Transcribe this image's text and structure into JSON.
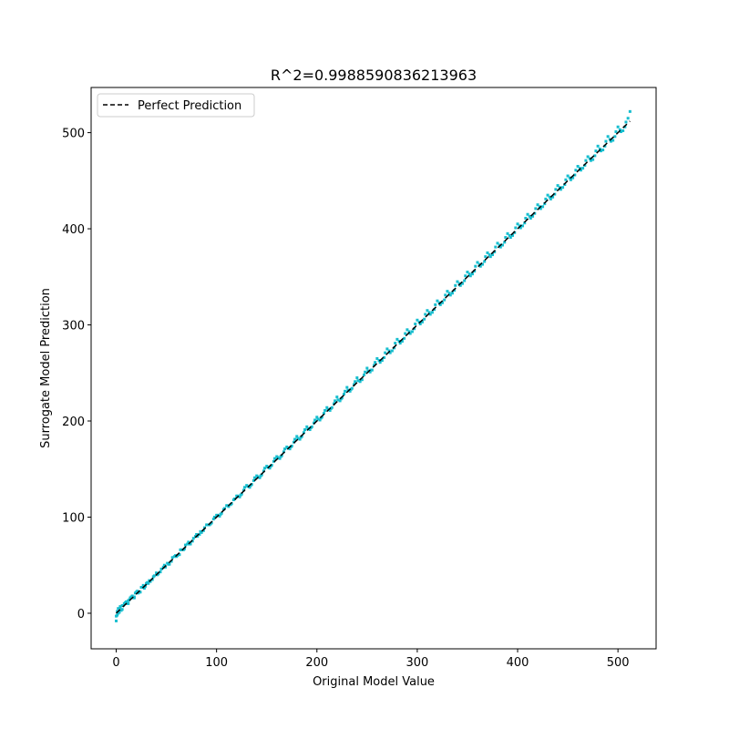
{
  "chart_data": {
    "type": "scatter",
    "title": "R^2=0.9988590836213963",
    "xlabel": "Original Model Value",
    "ylabel": "Surrogate Model Prediction",
    "xlim": [
      -25,
      538
    ],
    "ylim": [
      -37,
      547
    ],
    "x_ticks": [
      0,
      100,
      200,
      300,
      400,
      500
    ],
    "y_ticks": [
      0,
      100,
      200,
      300,
      400,
      500
    ],
    "x_tick_labels": [
      "0",
      "100",
      "200",
      "300",
      "400",
      "500"
    ],
    "y_tick_labels": [
      "0",
      "100",
      "200",
      "300",
      "400",
      "500"
    ],
    "grid": false,
    "legend": {
      "placement": "upper-left",
      "entries": [
        "Perfect Prediction"
      ]
    },
    "series": [
      {
        "kind": "line",
        "legend_label": "Perfect Prediction",
        "style": "dashed",
        "color": "#000000",
        "x": [
          0,
          512
        ],
        "y": [
          0,
          512
        ]
      },
      {
        "kind": "scatter",
        "color": "#17becf",
        "marker": "square",
        "x": [
          0,
          1,
          2,
          3,
          4,
          5,
          6,
          8,
          10,
          12,
          14,
          16,
          18,
          20,
          22,
          25,
          28,
          30,
          33,
          36,
          40,
          44,
          48,
          52,
          56,
          60,
          64,
          68,
          72,
          76,
          80,
          85,
          90,
          95,
          100,
          105,
          110,
          115,
          120,
          125,
          130,
          135,
          140,
          145,
          150,
          155,
          160,
          165,
          170,
          175,
          180,
          185,
          190,
          195,
          200,
          205,
          210,
          215,
          220,
          225,
          230,
          235,
          240,
          245,
          250,
          255,
          260,
          265,
          270,
          275,
          280,
          285,
          290,
          295,
          300,
          305,
          310,
          315,
          320,
          325,
          330,
          335,
          340,
          345,
          350,
          355,
          360,
          365,
          370,
          375,
          380,
          385,
          390,
          395,
          400,
          405,
          410,
          415,
          420,
          425,
          430,
          435,
          440,
          445,
          450,
          455,
          460,
          465,
          470,
          475,
          480,
          485,
          490,
          495,
          500,
          505,
          510,
          512,
          0,
          2,
          4,
          6,
          9,
          12,
          15,
          18,
          21,
          24,
          27,
          32,
          37,
          42,
          47,
          53,
          58,
          63,
          69,
          74,
          79,
          83,
          88,
          93,
          98,
          103,
          108,
          112,
          118,
          123,
          128,
          133,
          138,
          143,
          148,
          153,
          158,
          163,
          168,
          173,
          178,
          183,
          188,
          193,
          198,
          203,
          208,
          213,
          218,
          223,
          228,
          233,
          238,
          243,
          248,
          253,
          258,
          263,
          268,
          273,
          278,
          283,
          288,
          293,
          298,
          303,
          308,
          313,
          318,
          323,
          328,
          333,
          338,
          343,
          348,
          353,
          358,
          363,
          368,
          373,
          378,
          383,
          388,
          393,
          398,
          403,
          408,
          413,
          418,
          423,
          428,
          433,
          438,
          443,
          448,
          453,
          458,
          463,
          468,
          473,
          478,
          483,
          488,
          493,
          498,
          503,
          508,
          1,
          3,
          7,
          11,
          13,
          17,
          19,
          23,
          26,
          29,
          31,
          34,
          38,
          41,
          45,
          49,
          51,
          55,
          59,
          61,
          65,
          67,
          71,
          73,
          77,
          81,
          84,
          87,
          91,
          94,
          97,
          101,
          104,
          107,
          111,
          114,
          117,
          121,
          124,
          127,
          131,
          134,
          137,
          141,
          144,
          147,
          151,
          154,
          157,
          161,
          164,
          167,
          171,
          174,
          177,
          181,
          184,
          187,
          191,
          194,
          197,
          201,
          204,
          207,
          211,
          214,
          217,
          221,
          224,
          227,
          231,
          234,
          237,
          241,
          244,
          247,
          251,
          254,
          257,
          262,
          267,
          272,
          277,
          282,
          287,
          292,
          297,
          302,
          307,
          312,
          317,
          322,
          327,
          332,
          337,
          342,
          347,
          352,
          357,
          362,
          367,
          372,
          377,
          382,
          387,
          392,
          397,
          402,
          407,
          412,
          417,
          422,
          427,
          432,
          437,
          442,
          447,
          452,
          457,
          462,
          467,
          472,
          477,
          482,
          487,
          492,
          497,
          502,
          507
        ],
        "y": [
          -8,
          2,
          5,
          1,
          6,
          3,
          8,
          10,
          12,
          13,
          16,
          18,
          17,
          22,
          21,
          27,
          26,
          31,
          34,
          35,
          42,
          43,
          50,
          51,
          58,
          59,
          66,
          67,
          74,
          75,
          82,
          84,
          92,
          94,
          102,
          104,
          112,
          114,
          122,
          124,
          133,
          134,
          143,
          144,
          153,
          154,
          163,
          164,
          173,
          174,
          184,
          184,
          194,
          194,
          204,
          204,
          214,
          214,
          225,
          224,
          235,
          234,
          245,
          243,
          255,
          253,
          265,
          263,
          275,
          273,
          285,
          283,
          295,
          293,
          305,
          303,
          315,
          313,
          325,
          323,
          335,
          333,
          345,
          343,
          355,
          353,
          365,
          363,
          375,
          373,
          385,
          383,
          395,
          393,
          405,
          403,
          415,
          413,
          425,
          423,
          435,
          433,
          445,
          443,
          455,
          453,
          465,
          463,
          475,
          472,
          486,
          482,
          496,
          492,
          506,
          502,
          515,
          522,
          -3,
          0,
          7,
          4,
          11,
          10,
          17,
          16,
          23,
          22,
          29,
          31,
          38,
          41,
          48,
          51,
          59,
          61,
          71,
          72,
          80,
          82,
          89,
          92,
          100,
          101,
          109,
          111,
          119,
          121,
          131,
          131,
          141,
          141,
          151,
          151,
          161,
          161,
          171,
          171,
          181,
          181,
          191,
          191,
          201,
          201,
          211,
          211,
          221,
          221,
          231,
          231,
          241,
          241,
          251,
          251,
          261,
          261,
          271,
          271,
          281,
          281,
          291,
          291,
          301,
          301,
          311,
          311,
          321,
          321,
          331,
          331,
          341,
          341,
          351,
          351,
          361,
          361,
          371,
          371,
          381,
          381,
          391,
          391,
          401,
          401,
          411,
          411,
          421,
          421,
          431,
          431,
          441,
          441,
          451,
          451,
          461,
          461,
          471,
          471,
          481,
          481,
          491,
          491,
          501,
          501,
          511,
          -2,
          1,
          8,
          10,
          14,
          16,
          21,
          22,
          27,
          28,
          32,
          33,
          39,
          40,
          46,
          48,
          52,
          54,
          60,
          60,
          66,
          66,
          72,
          72,
          78,
          80,
          85,
          86,
          92,
          93,
          98,
          102,
          103,
          108,
          112,
          113,
          118,
          122,
          123,
          128,
          132,
          133,
          138,
          142,
          143,
          148,
          152,
          153,
          158,
          162,
          163,
          168,
          172,
          173,
          178,
          182,
          183,
          188,
          192,
          193,
          198,
          202,
          203,
          208,
          212,
          213,
          218,
          222,
          223,
          228,
          232,
          233,
          238,
          242,
          243,
          248,
          252,
          253,
          258,
          263,
          266,
          273,
          276,
          283,
          286,
          293,
          296,
          303,
          306,
          313,
          316,
          323,
          326,
          333,
          336,
          343,
          346,
          353,
          356,
          363,
          366,
          373,
          376,
          383,
          386,
          393,
          396,
          403,
          406,
          413,
          416,
          423,
          426,
          433,
          436,
          443,
          446,
          453,
          456,
          463,
          466,
          473,
          476,
          483,
          486,
          493,
          496,
          503,
          506
        ]
      }
    ]
  }
}
